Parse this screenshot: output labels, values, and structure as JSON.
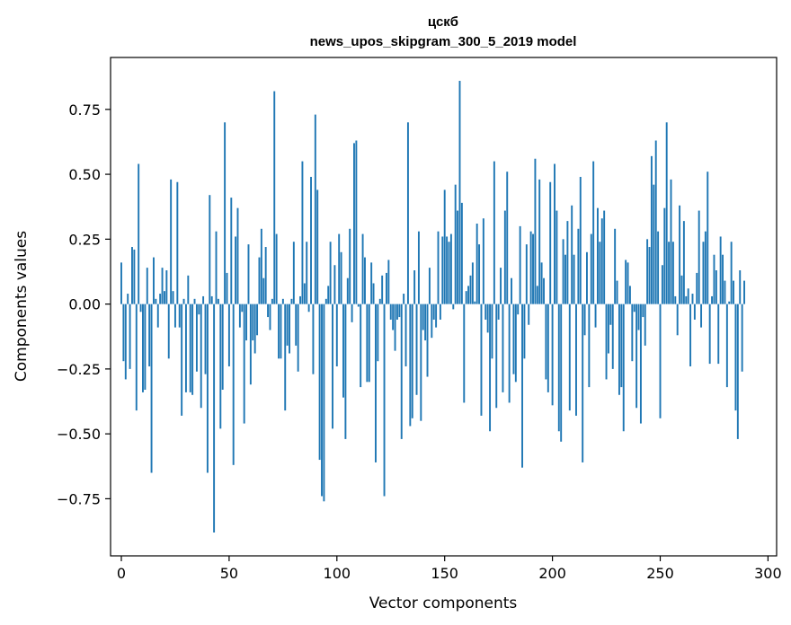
{
  "chart_data": {
    "type": "bar",
    "title": "цскб",
    "subtitle": "news_upos_skipgram_300_5_2019 model",
    "xlabel": "Vector components",
    "ylabel": "Components values",
    "xlim": [
      -5,
      304
    ],
    "ylim": [
      -0.97,
      0.95
    ],
    "x_ticks": [
      0,
      50,
      100,
      150,
      200,
      250,
      300
    ],
    "y_ticks": [
      -0.75,
      -0.5,
      -0.25,
      0.0,
      0.25,
      0.5,
      0.75
    ],
    "x_tick_labels": [
      "0",
      "50",
      "100",
      "150",
      "200",
      "250",
      "300"
    ],
    "y_tick_labels": [
      "−0.75",
      "−0.50",
      "−0.25",
      "0.00",
      "0.25",
      "0.50",
      "0.75"
    ],
    "grid": false,
    "bar_color": "#1f77b4",
    "values": [
      0.16,
      -0.22,
      -0.29,
      0.04,
      -0.25,
      0.22,
      0.21,
      -0.41,
      0.54,
      -0.03,
      -0.34,
      -0.33,
      0.14,
      -0.24,
      -0.65,
      0.18,
      0.02,
      -0.09,
      0.04,
      0.14,
      0.05,
      0.13,
      -0.21,
      0.48,
      0.05,
      -0.09,
      0.47,
      -0.09,
      -0.43,
      0.02,
      -0.34,
      0.11,
      -0.34,
      -0.35,
      0.02,
      -0.26,
      -0.04,
      -0.4,
      0.03,
      -0.27,
      -0.65,
      0.42,
      0.03,
      -0.88,
      0.28,
      0.02,
      -0.48,
      -0.33,
      0.7,
      0.12,
      -0.24,
      0.41,
      -0.62,
      0.26,
      0.37,
      -0.09,
      -0.03,
      -0.46,
      -0.14,
      0.23,
      -0.31,
      -0.14,
      -0.19,
      -0.12,
      0.18,
      0.29,
      0.1,
      0.22,
      -0.05,
      -0.1,
      0.02,
      0.82,
      0.27,
      -0.21,
      -0.21,
      0.02,
      -0.41,
      -0.16,
      -0.19,
      0.02,
      0.24,
      -0.16,
      -0.26,
      0.03,
      0.55,
      0.08,
      0.24,
      -0.03,
      0.49,
      -0.27,
      0.73,
      0.44,
      -0.6,
      -0.74,
      -0.76,
      0.02,
      0.07,
      0.24,
      -0.48,
      0.15,
      -0.24,
      0.27,
      0.2,
      -0.36,
      -0.52,
      0.1,
      0.29,
      -0.07,
      0.62,
      0.63,
      -0.01,
      -0.32,
      0.27,
      0.18,
      -0.3,
      -0.3,
      0.16,
      0.08,
      -0.61,
      -0.22,
      0.02,
      0.11,
      -0.74,
      0.12,
      0.17,
      -0.06,
      -0.1,
      -0.18,
      -0.06,
      -0.05,
      -0.52,
      0.04,
      -0.24,
      0.7,
      -0.47,
      -0.44,
      0.13,
      -0.35,
      0.28,
      -0.45,
      -0.1,
      -0.14,
      -0.28,
      0.14,
      -0.13,
      -0.06,
      -0.09,
      0.28,
      -0.06,
      0.26,
      0.44,
      0.26,
      0.24,
      0.27,
      -0.02,
      0.46,
      0.36,
      0.86,
      0.39,
      -0.38,
      0.05,
      0.07,
      0.11,
      0.16,
      0.01,
      0.31,
      0.23,
      -0.43,
      0.33,
      -0.06,
      -0.11,
      -0.49,
      -0.21,
      0.55,
      -0.4,
      -0.06,
      0.14,
      -0.34,
      0.36,
      0.51,
      -0.38,
      0.1,
      -0.27,
      -0.3,
      -0.04,
      0.3,
      -0.63,
      -0.21,
      0.23,
      -0.08,
      0.28,
      0.27,
      0.56,
      0.07,
      0.48,
      0.16,
      0.1,
      -0.29,
      -0.34,
      0.47,
      -0.39,
      0.54,
      0.36,
      -0.49,
      -0.53,
      0.25,
      0.19,
      0.32,
      -0.41,
      0.38,
      0.19,
      -0.43,
      0.29,
      0.49,
      -0.61,
      -0.12,
      0.2,
      -0.32,
      0.27,
      0.55,
      -0.09,
      0.37,
      0.24,
      0.33,
      0.36,
      -0.29,
      -0.19,
      -0.08,
      -0.25,
      0.29,
      0.09,
      -0.35,
      -0.32,
      -0.49,
      0.17,
      0.16,
      0.07,
      -0.22,
      -0.03,
      -0.4,
      -0.1,
      -0.46,
      -0.05,
      -0.16,
      0.25,
      0.22,
      0.57,
      0.46,
      0.63,
      0.28,
      -0.44,
      0.15,
      0.37,
      0.7,
      0.24,
      0.48,
      0.24,
      0.03,
      -0.12,
      0.38,
      0.11,
      0.32,
      0.03,
      0.06,
      -0.24,
      0.04,
      -0.06,
      0.12,
      0.36,
      -0.09,
      0.24,
      0.28,
      0.51,
      -0.23,
      0.03,
      0.19,
      0.13,
      -0.23,
      0.26,
      0.19,
      0.09,
      -0.32,
      0.01,
      0.24,
      0.09,
      -0.41,
      -0.52,
      0.13,
      -0.26,
      0.09
    ]
  }
}
